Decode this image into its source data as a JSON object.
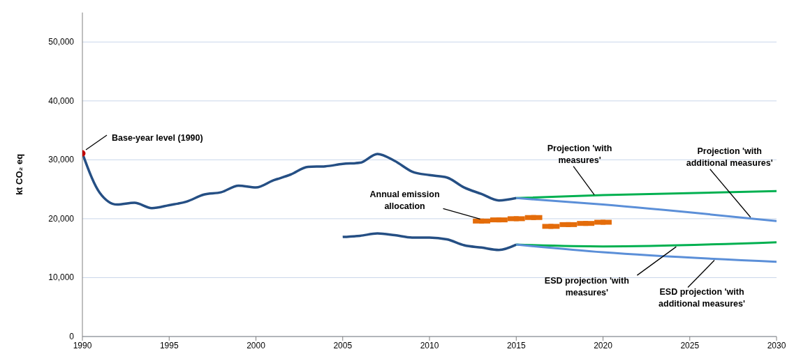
{
  "chart_data": {
    "type": "line",
    "ylabel": "kt CO₂ eq",
    "xlim": [
      1990,
      2030
    ],
    "xticks": [
      1990,
      1995,
      2000,
      2005,
      2010,
      2015,
      2020,
      2025,
      2030
    ],
    "ylim": [
      0,
      55000
    ],
    "yticks": [
      0,
      {
        "value": 10000,
        "label": "10,000"
      },
      {
        "value": 20000,
        "label": "20,000"
      },
      {
        "value": 30000,
        "label": "30,000"
      },
      {
        "value": 40000,
        "label": "40,000"
      },
      {
        "value": 50000,
        "label": "50,000"
      }
    ],
    "grid": "y",
    "legend": false,
    "marker": "none",
    "line_style": "solid",
    "series": [
      {
        "color": "#254f84",
        "x": [
          1990,
          1991,
          1992,
          1993,
          1994,
          1995,
          1996,
          1997,
          1998,
          1999,
          2000,
          2001,
          2002,
          2003,
          2004,
          2005,
          2006,
          2007,
          2008,
          2009,
          2010,
          2011,
          2012,
          2013,
          2014,
          2015
        ],
        "values": [
          31100,
          24400,
          22400,
          22700,
          21800,
          22300,
          22900,
          24100,
          24500,
          25600,
          25300,
          26500,
          27500,
          28800,
          28900,
          29300,
          29500,
          31000,
          29800,
          28000,
          27400,
          27000,
          25300,
          24200,
          23100,
          23500
        ]
      },
      {
        "color": "#254f84",
        "x": [
          2005,
          2006,
          2007,
          2008,
          2009,
          2010,
          2011,
          2012,
          2013,
          2014,
          2015
        ],
        "values": [
          16900,
          17100,
          17500,
          17200,
          16800,
          16800,
          16500,
          15500,
          15100,
          14700,
          15600
        ]
      },
      {
        "color": "#00b050",
        "x": [
          2015,
          2020,
          2030
        ],
        "values": [
          23500,
          24000,
          24700
        ]
      },
      {
        "color": "#5b8fd8",
        "x": [
          2015,
          2020,
          2030
        ],
        "values": [
          23500,
          22400,
          19600
        ]
      },
      {
        "color": "#00b050",
        "x": [
          2015,
          2020,
          2030
        ],
        "values": [
          15600,
          15300,
          16000
        ]
      },
      {
        "color": "#5b8fd8",
        "x": [
          2015,
          2020,
          2030
        ],
        "values": [
          15600,
          14300,
          12700
        ]
      },
      {
        "type": "scatter",
        "color": "#e46c0a",
        "marker": "square",
        "x": [
          2013,
          2014,
          2015,
          2016,
          2017,
          2018,
          2019,
          2020
        ],
        "values": [
          19600,
          19800,
          20000,
          20200,
          18700,
          19000,
          19200,
          19400
        ],
        "xerrors": [
          0.5,
          0.5,
          0.5,
          0.5,
          0.5,
          0.5,
          0.5,
          0.5
        ]
      },
      {
        "type": "scatter",
        "color": "#c00000",
        "marker": "circle",
        "x": [
          1990
        ],
        "values": [
          31100
        ]
      }
    ],
    "annotations": [
      {
        "text": "Base-year level (1990)",
        "x": 1990,
        "y": 31100
      },
      {
        "text": "Annual emission allocation",
        "x": 2013,
        "y": 19600
      },
      {
        "text": "Projection 'with measures'",
        "x": 2019.5,
        "y": 23700
      },
      {
        "text": "Projection 'with additional measures'",
        "x": 2028.5,
        "y": 19900
      },
      {
        "text": "ESD projection 'with measures'",
        "x": 2024.3,
        "y": 15600
      },
      {
        "text": "ESD projection 'with additional measures'",
        "x": 2026.5,
        "y": 13300
      }
    ]
  }
}
